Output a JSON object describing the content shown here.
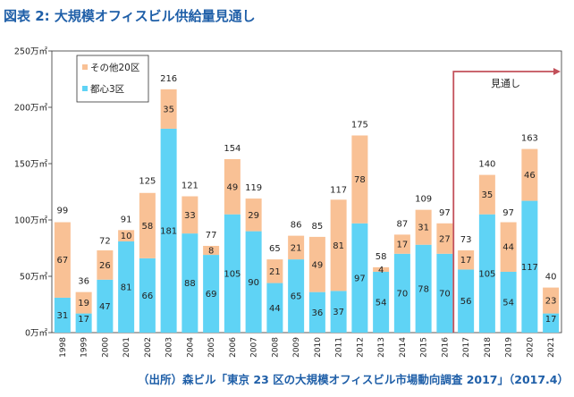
{
  "title": "図表 2: 大規模オフィスビル供給量見通し",
  "source": "（出所）森ビル「東京 23 区の大規模オフィスビル市場動向調査 2017」（2017.4）",
  "colors": {
    "toshin": "#5fd3f5",
    "other": "#f9c195",
    "forecast": "#c2505a",
    "title": "#1f5fa8"
  },
  "chart_data": {
    "type": "bar",
    "stacked": true,
    "categories": [
      "1998",
      "1999",
      "2000",
      "2001",
      "2002",
      "2003",
      "2004",
      "2005",
      "2006",
      "2007",
      "2008",
      "2009",
      "2010",
      "2011",
      "2012",
      "2013",
      "2014",
      "2015",
      "2016",
      "2017",
      "2018",
      "2019",
      "2020",
      "2021"
    ],
    "series": [
      {
        "name": "都心3区",
        "values": [
          31,
          17,
          47,
          81,
          66,
          181,
          88,
          69,
          105,
          90,
          44,
          65,
          36,
          37,
          97,
          54,
          70,
          78,
          70,
          56,
          105,
          54,
          117,
          17
        ]
      },
      {
        "name": "その他20区",
        "values": [
          67,
          19,
          26,
          10,
          58,
          35,
          33,
          8,
          49,
          29,
          21,
          21,
          49,
          81,
          78,
          4,
          17,
          31,
          27,
          17,
          35,
          44,
          46,
          23
        ]
      }
    ],
    "totals": [
      99,
      36,
      72,
      91,
      125,
      216,
      121,
      77,
      154,
      119,
      65,
      86,
      85,
      117,
      175,
      58,
      87,
      109,
      97,
      73,
      140,
      97,
      163,
      40
    ],
    "ylim": [
      0,
      250
    ],
    "yticks": [
      0,
      50,
      100,
      150,
      200,
      250
    ],
    "ytick_labels": [
      "0万㎡",
      "50万㎡",
      "100万㎡",
      "150万㎡",
      "200万㎡",
      "250万㎡"
    ],
    "legend": [
      "その他20区",
      "都心3区"
    ],
    "legend_position": "top-left",
    "annotation": {
      "text": "見通し",
      "from_category": "2017"
    }
  }
}
